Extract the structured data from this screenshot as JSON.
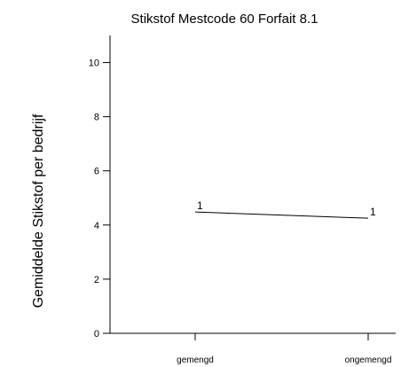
{
  "chart_data": {
    "type": "line",
    "title": "Stikstof Mestcode 60 Forfait 8.1",
    "xlabel": "",
    "ylabel": "Gemiddelde Stikstof per bedrijf",
    "categories": [
      "gemengd",
      "ongemengd"
    ],
    "ylim": [
      0,
      11
    ],
    "yticks": [
      0,
      2,
      4,
      6,
      8,
      10
    ],
    "ytick_labels": [
      "0",
      "2",
      "4",
      "6",
      "8",
      "10"
    ],
    "grid": false,
    "series": [
      {
        "values": [
          4.48,
          4.25
        ],
        "point_labels": [
          "1",
          "1"
        ],
        "color": "#000000"
      }
    ]
  }
}
